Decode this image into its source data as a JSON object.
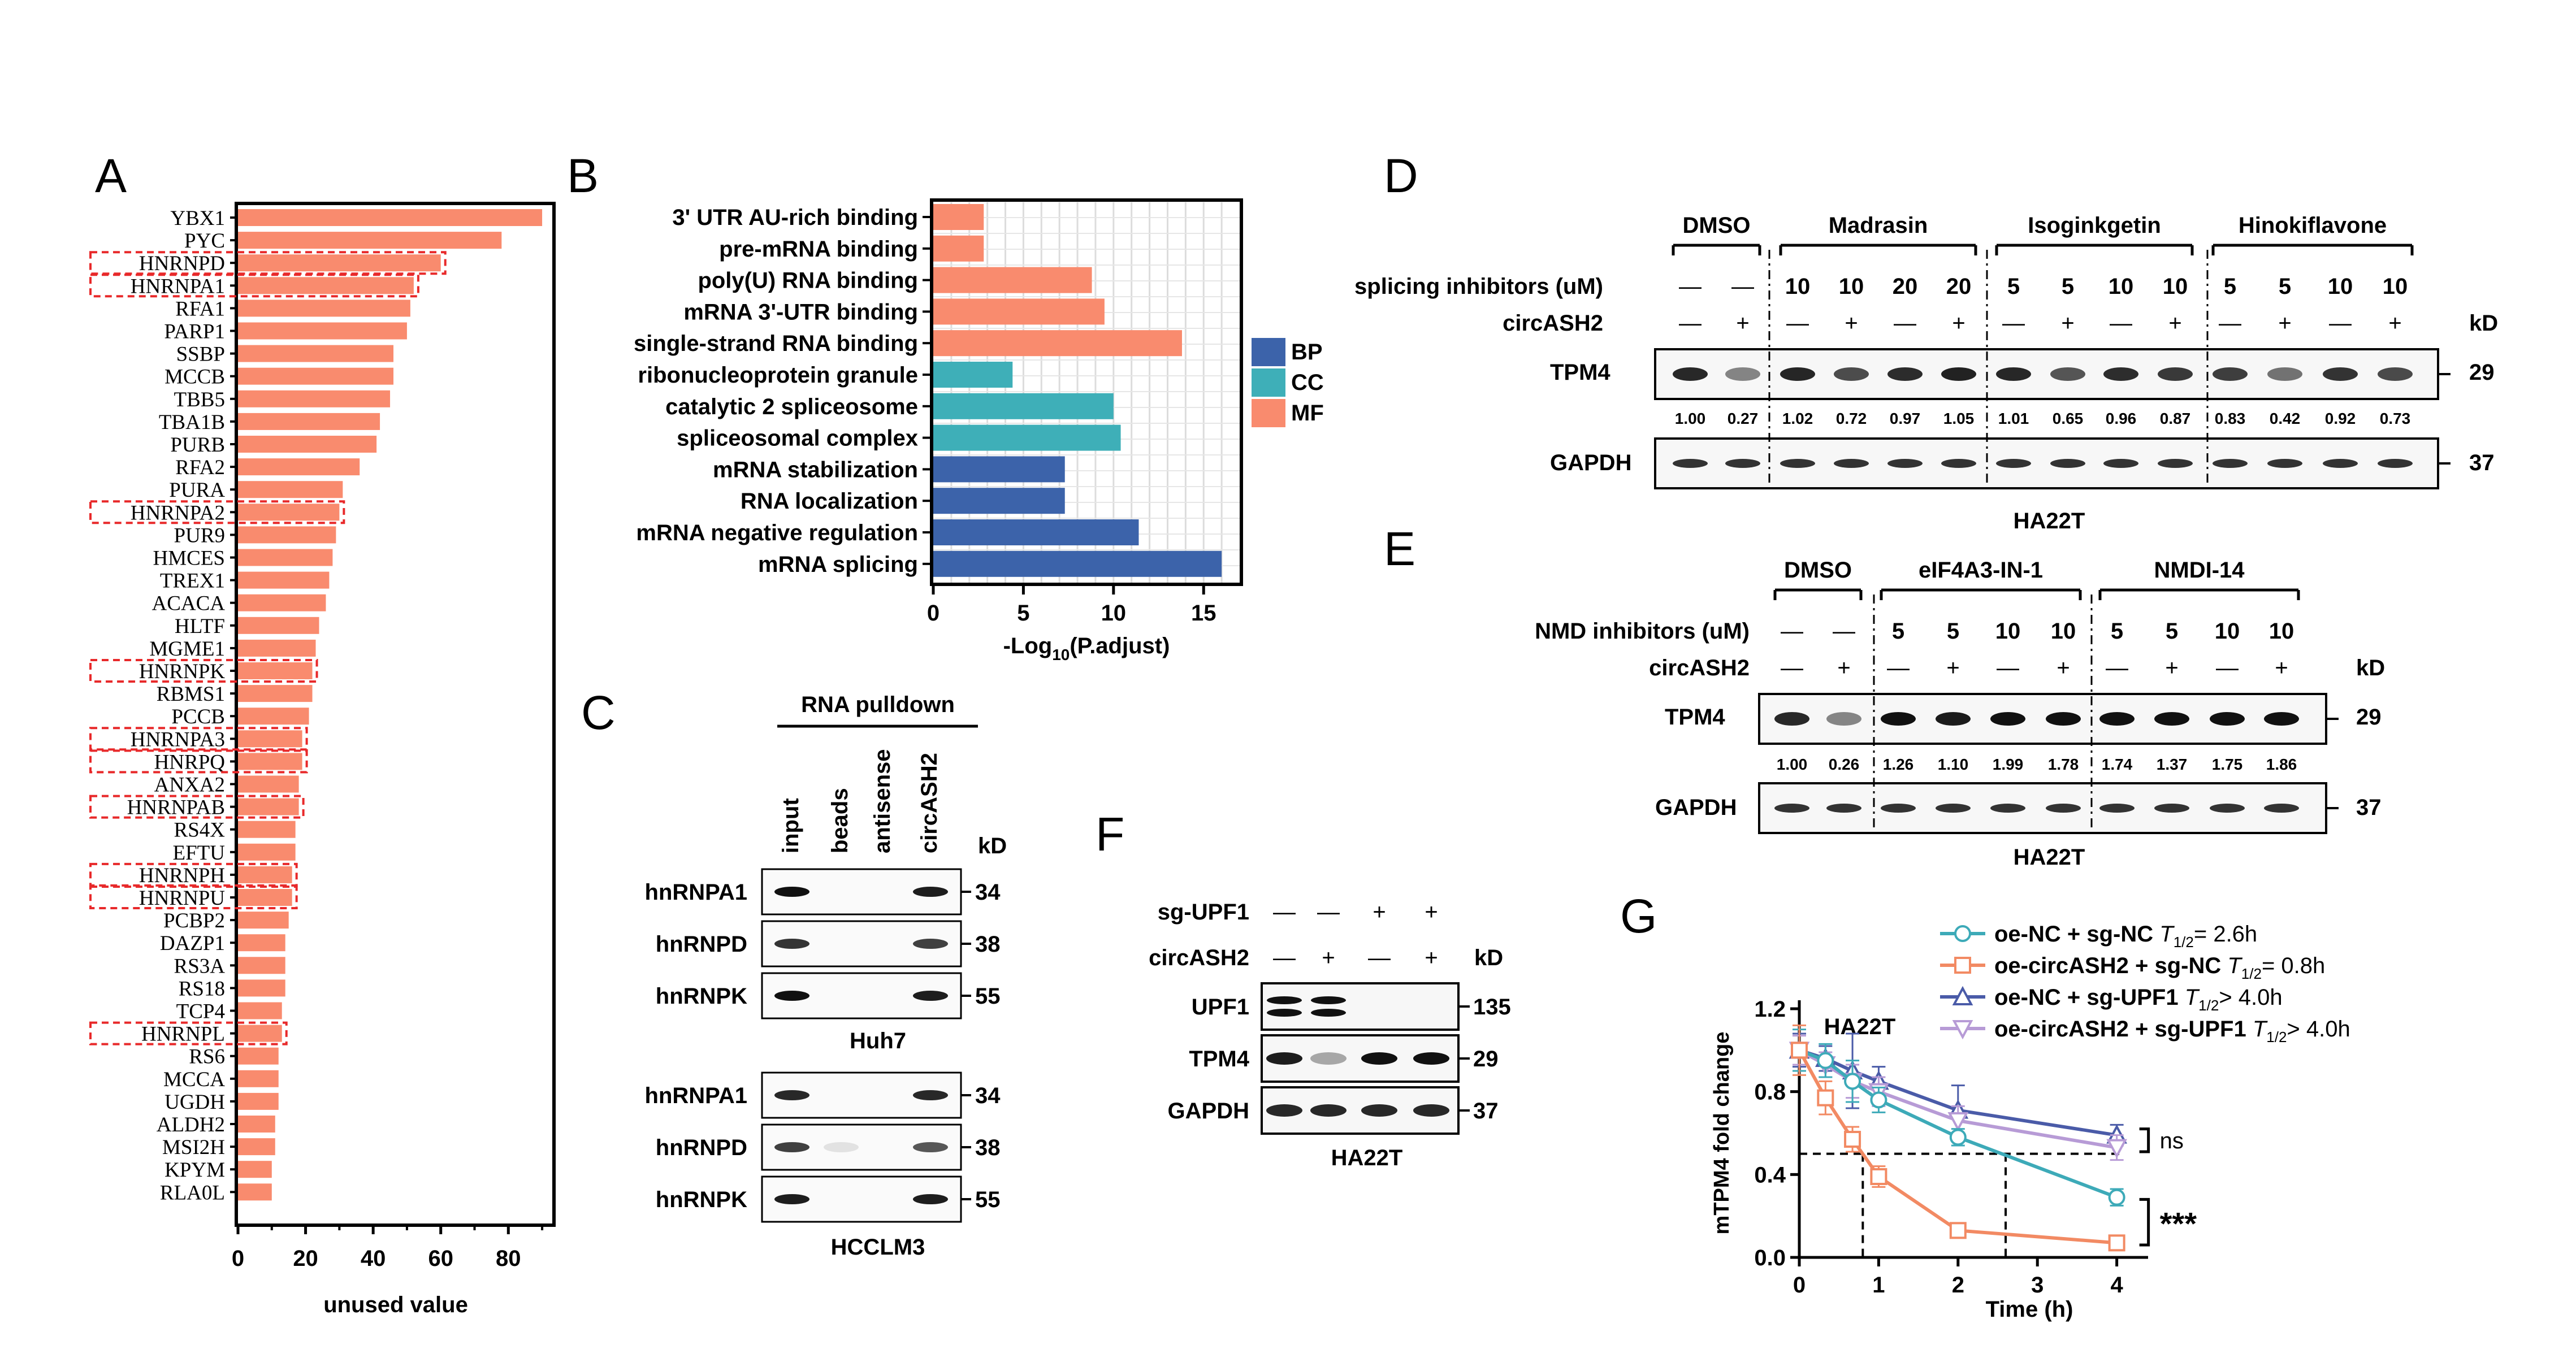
{
  "panels": {
    "a": "A",
    "b": "B",
    "c": "C",
    "d": "D",
    "e": "E",
    "f": "F",
    "g": "G"
  },
  "chart_data": [
    {
      "panel": "A",
      "type": "bar",
      "orientation": "horizontal",
      "xlabel": "unused value",
      "xlim": [
        0,
        93
      ],
      "xticks": [
        "0",
        "20",
        "40",
        "60",
        "80"
      ],
      "bar_color": "#F98B6E",
      "highlight_color": "#E8292A",
      "categories": [
        "YBX1",
        "PYC",
        "HNRNPD",
        "HNRNPA1",
        "RFA1",
        "PARP1",
        "SSBP",
        "MCCB",
        "TBB5",
        "TBA1B",
        "PURB",
        "RFA2",
        "PURA",
        "HNRNPA2",
        "PUR9",
        "HMCES",
        "TREX1",
        "ACACA",
        "HLTF",
        "MGME1",
        "HNRNPK",
        "RBMS1",
        "PCCB",
        "HNRNPA3",
        "HNRPQ",
        "ANXA2",
        "HNRNPAB",
        "RS4X",
        "EFTU",
        "HNRNPH",
        "HNRNPU",
        "PCBP2",
        "DAZP1",
        "RS3A",
        "RS18",
        "TCP4",
        "HNRNPL",
        "RS6",
        "MCCA",
        "UGDH",
        "ALDH2",
        "MSI2H",
        "KPYM",
        "RLA0L"
      ],
      "values": [
        90,
        78,
        60,
        52,
        51,
        50,
        46,
        46,
        45,
        42,
        41,
        36,
        31,
        30,
        29,
        28,
        27,
        26,
        24,
        23,
        22,
        22,
        21,
        19,
        19,
        18,
        18,
        17,
        17,
        16,
        16,
        15,
        14,
        14,
        14,
        13,
        13,
        12,
        12,
        12,
        11,
        11,
        10,
        10
      ],
      "highlighted": [
        "HNRNPD",
        "HNRNPA1",
        "HNRNPA2",
        "HNRNPK",
        "HNRNPA3",
        "HNRPQ",
        "HNRNPAB",
        "HNRNPH",
        "HNRNPU",
        "HNRNPL"
      ]
    },
    {
      "panel": "B",
      "type": "bar",
      "orientation": "horizontal",
      "xlabel_main": "-Log",
      "xlabel_sub": "10",
      "xlabel_tail": "(P.adjust)",
      "xlim": [
        0,
        17
      ],
      "xticks": [
        "0",
        "5",
        "10",
        "15"
      ],
      "categories": [
        "3' UTR AU-rich binding",
        "pre-mRNA binding",
        "poly(U) RNA binding",
        "mRNA 3'-UTR binding",
        "single-strand RNA binding",
        "ribonucleoprotein granule",
        "catalytic 2 spliceosome",
        "spliceosomal complex",
        "mRNA stabilization",
        "RNA localization",
        "mRNA negative regulation",
        "mRNA splicing"
      ],
      "values": [
        2.8,
        2.8,
        8.8,
        9.5,
        13.8,
        4.4,
        10.0,
        10.4,
        7.3,
        7.3,
        11.4,
        16.0
      ],
      "groups": [
        "MF",
        "MF",
        "MF",
        "MF",
        "MF",
        "CC",
        "CC",
        "CC",
        "BP",
        "BP",
        "BP",
        "BP"
      ],
      "legend": [
        {
          "name": "BP",
          "color": "#3C63AA"
        },
        {
          "name": "CC",
          "color": "#3EAFB8"
        },
        {
          "name": "MF",
          "color": "#F98B6E"
        }
      ]
    },
    {
      "panel": "G",
      "type": "line",
      "title": "HA22T",
      "xlabel": "Time (h)",
      "ylabel": "mTPM4 fold change",
      "xlim": [
        0,
        4.4
      ],
      "ylim": [
        0,
        1.25
      ],
      "xticks": [
        "0",
        "1",
        "2",
        "3",
        "4"
      ],
      "yticks": [
        "0.0",
        "0.4",
        "0.8",
        "1.2"
      ],
      "x": [
        0,
        0.33,
        0.67,
        1,
        2,
        4
      ],
      "series": [
        {
          "name": "oe-NC + sg-NC",
          "half_life": "= 2.6h",
          "color": "#3DAAB8",
          "marker": "circle",
          "values": [
            1.0,
            0.95,
            0.85,
            0.76,
            0.58,
            0.29
          ],
          "errors": [
            0.1,
            0.08,
            0.1,
            0.06,
            0.04,
            0.04
          ]
        },
        {
          "name": "oe-circASH2 + sg-NC",
          "half_life": "= 0.8h",
          "color": "#F28A63",
          "marker": "square",
          "values": [
            1.0,
            0.77,
            0.57,
            0.39,
            0.13,
            0.07
          ],
          "errors": [
            0.12,
            0.08,
            0.06,
            0.05,
            0.02,
            0.02
          ]
        },
        {
          "name": "oe-NC + sg-UPF1",
          "half_life": "> 4.0h",
          "color": "#4A5BA8",
          "marker": "triangle",
          "values": [
            1.0,
            0.96,
            0.9,
            0.85,
            0.71,
            0.59
          ],
          "errors": [
            0.08,
            0.06,
            0.18,
            0.07,
            0.12,
            0.05
          ]
        },
        {
          "name": "oe-circASH2 + sg-UPF1",
          "half_life": "> 4.0h",
          "color": "#B79BD6",
          "marker": "down-triangle",
          "values": [
            1.0,
            0.93,
            0.85,
            0.8,
            0.66,
            0.53
          ],
          "errors": [
            0.07,
            0.06,
            0.08,
            0.07,
            0.07,
            0.06
          ]
        }
      ],
      "half_life_prefix": "T",
      "half_life_sub": "1/2",
      "halfline_y": 0.5,
      "halfline_x": [
        0.8,
        2.6
      ],
      "sig_upper": "ns",
      "sig_lower": "***"
    }
  ],
  "panel_c": {
    "header": "RNA pulldown",
    "lanes": [
      "input",
      "beads",
      "antisense",
      "circASH2"
    ],
    "kd": "kD",
    "rows_top": [
      "hnRNPA1",
      "hnRNPD",
      "hnRNPK"
    ],
    "rows_bottom": [
      "hnRNPA1",
      "hnRNPD",
      "hnRNPK"
    ],
    "sizes": [
      "34",
      "38",
      "55"
    ],
    "cell_top": "Huh7",
    "cell_bottom": "HCCLM3"
  },
  "panel_d": {
    "groups": [
      "DMSO",
      "Madrasin",
      "Isoginkgetin",
      "Hinokiflavone"
    ],
    "row1_label": "splicing inhibitors (uM)",
    "row1": [
      "—",
      "—",
      "10",
      "10",
      "20",
      "20",
      "5",
      "5",
      "10",
      "10",
      "5",
      "5",
      "10",
      "10"
    ],
    "row2_label": "circASH2",
    "row2": [
      "—",
      "+",
      "—",
      "+",
      "—",
      "+",
      "—",
      "+",
      "—",
      "+",
      "—",
      "+",
      "—",
      "+"
    ],
    "kd": "kD",
    "blot1": "TPM4",
    "size1": "29",
    "quant": [
      "1.00",
      "0.27",
      "1.02",
      "0.72",
      "0.97",
      "1.05",
      "1.01",
      "0.65",
      "0.96",
      "0.87",
      "0.83",
      "0.42",
      "0.92",
      "0.73"
    ],
    "blot2": "GAPDH",
    "size2": "37",
    "cell": "HA22T"
  },
  "panel_e": {
    "groups": [
      "DMSO",
      "eIF4A3-IN-1",
      "NMDI-14"
    ],
    "row1_label": "NMD inhibitors (uM)",
    "row1": [
      "—",
      "—",
      "5",
      "5",
      "10",
      "10",
      "5",
      "5",
      "10",
      "10"
    ],
    "row2_label": "circASH2",
    "row2": [
      "—",
      "+",
      "—",
      "+",
      "—",
      "+",
      "—",
      "+",
      "—",
      "+"
    ],
    "kd": "kD",
    "blot1": "TPM4",
    "size1": "29",
    "quant": [
      "1.00",
      "0.26",
      "1.26",
      "1.10",
      "1.99",
      "1.78",
      "1.74",
      "1.37",
      "1.75",
      "1.86"
    ],
    "blot2": "GAPDH",
    "size2": "37",
    "cell": "HA22T"
  },
  "panel_f": {
    "row1_label": "sg-UPF1",
    "row1": [
      "—",
      "—",
      "+",
      "+"
    ],
    "row2_label": "circASH2",
    "row2": [
      "—",
      "+",
      "—",
      "+"
    ],
    "kd": "kD",
    "blots": [
      "UPF1",
      "TPM4",
      "GAPDH"
    ],
    "sizes": [
      "135",
      "29",
      "37"
    ],
    "cell": "HA22T"
  }
}
